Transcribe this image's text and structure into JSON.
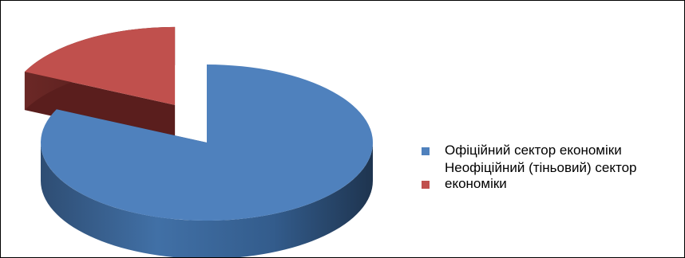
{
  "chart_data": {
    "type": "pie",
    "style": "3d-exploded",
    "title": "",
    "legend_position": "right",
    "slices": [
      {
        "label": "Офіційний сектор економіки",
        "value": 0.82,
        "color": "#4F81BD"
      },
      {
        "label": "Неофіційний (тіньовий) сектор економіки",
        "value": 0.18,
        "color": "#C0504D"
      }
    ]
  },
  "legend": {
    "items": [
      {
        "label": "Офіційний сектор економіки",
        "color": "#4F81BD"
      },
      {
        "label": "Неофіційний (тіньовий) сектор економіки",
        "color": "#C0504D"
      }
    ]
  }
}
